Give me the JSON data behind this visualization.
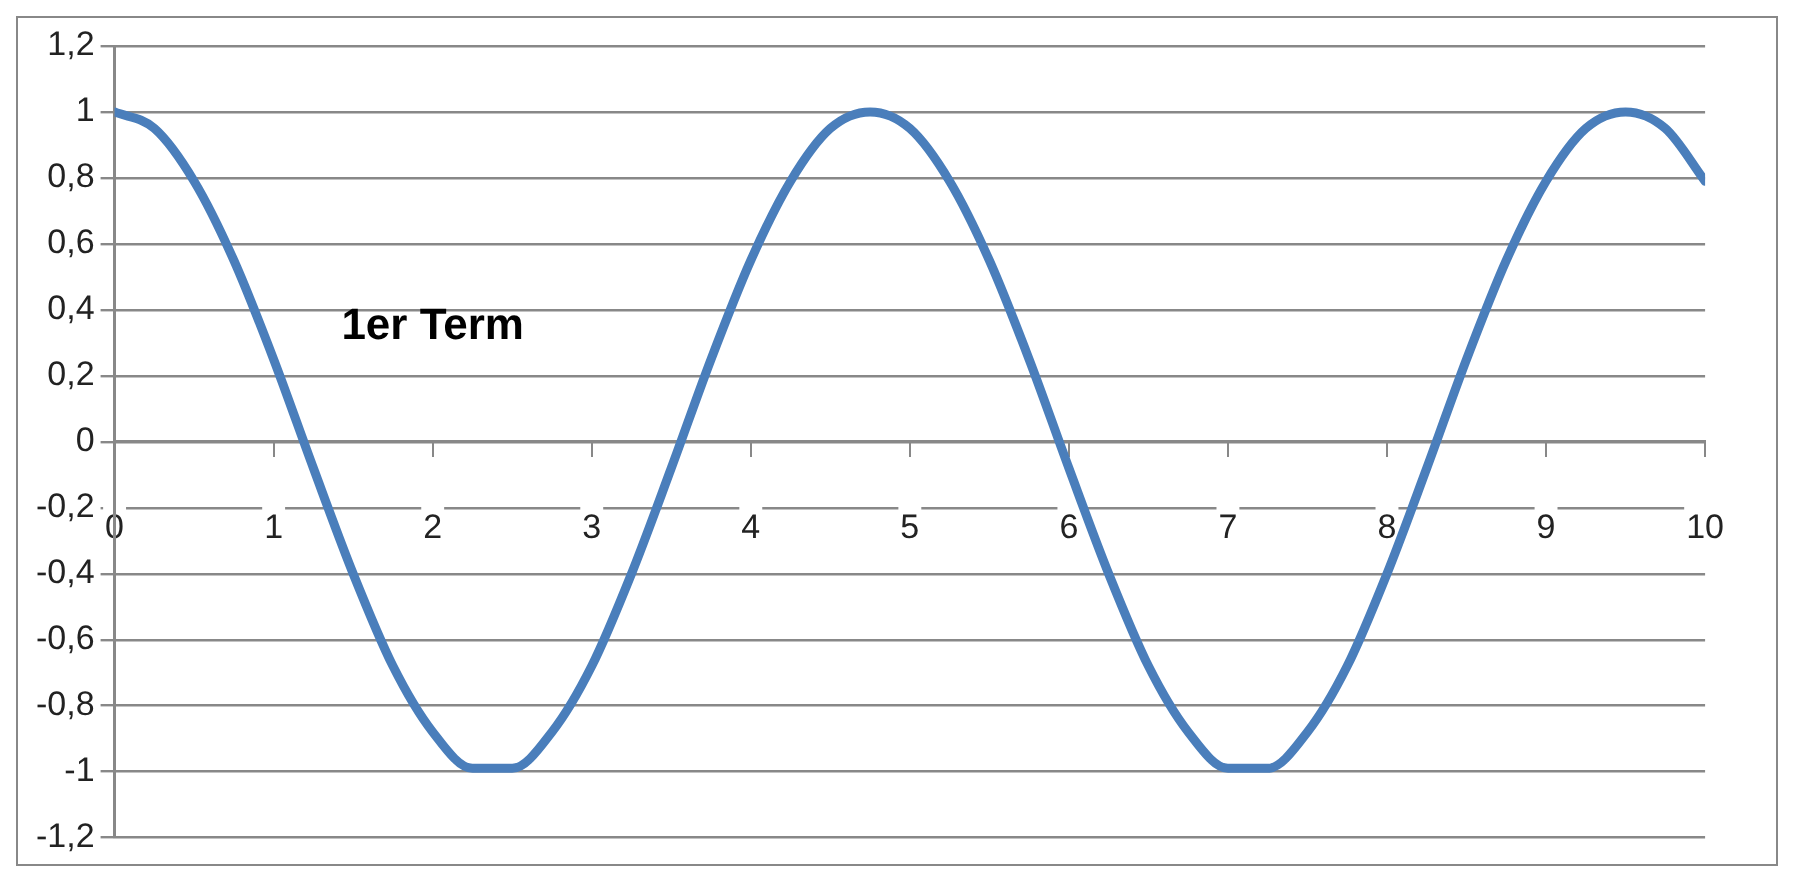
{
  "chart_data": {
    "type": "line",
    "x": [
      0,
      0.25,
      0.5,
      0.75,
      1,
      1.25,
      1.5,
      1.75,
      2,
      2.25,
      2.5,
      2.75,
      3,
      3.25,
      3.5,
      3.75,
      4,
      4.25,
      4.5,
      4.75,
      5,
      5.25,
      5.5,
      5.75,
      6,
      6.25,
      6.5,
      6.75,
      7,
      7.25,
      7.5,
      7.75,
      8,
      8.25,
      8.5,
      8.75,
      9,
      9.25,
      9.5,
      9.75,
      10
    ],
    "series": [
      {
        "color": "#4a7ebb",
        "values": [
          1,
          0.95,
          0.79,
          0.55,
          0.25,
          -0.08,
          -0.4,
          -0.68,
          -0.88,
          -0.99,
          -0.99,
          -0.88,
          -0.68,
          -0.4,
          -0.08,
          0.25,
          0.55,
          0.79,
          0.95,
          1,
          0.95,
          0.79,
          0.55,
          0.25,
          -0.08,
          -0.4,
          -0.68,
          -0.88,
          -0.99,
          -0.99,
          -0.88,
          -0.68,
          -0.4,
          -0.08,
          0.25,
          0.55,
          0.79,
          0.95,
          1,
          0.95,
          0.79
        ]
      }
    ],
    "xlim": [
      0,
      10
    ],
    "xticks": [
      0,
      1,
      2,
      3,
      4,
      5,
      6,
      7,
      8,
      9,
      10
    ],
    "ylim": [
      -1.2,
      1.2
    ],
    "yticks": [
      {
        "value": -1.2,
        "label": "-1,2"
      },
      -1,
      {
        "value": -0.8,
        "label": "-0,8"
      },
      {
        "value": -0.6,
        "label": "-0,6"
      },
      {
        "value": -0.4,
        "label": "-0,4"
      },
      {
        "value": -0.2,
        "label": "-0,2"
      },
      0,
      {
        "value": 0.2,
        "label": "0,2"
      },
      {
        "value": 0.4,
        "label": "0,4"
      },
      {
        "value": 0.6,
        "label": "0,6"
      },
      {
        "value": 0.8,
        "label": "0,8"
      },
      1,
      {
        "value": 1.2,
        "label": "1,2"
      }
    ],
    "annotations": [
      "1er Term"
    ],
    "grid": "y",
    "legend": false,
    "marker": "none",
    "line_style": "solid"
  }
}
